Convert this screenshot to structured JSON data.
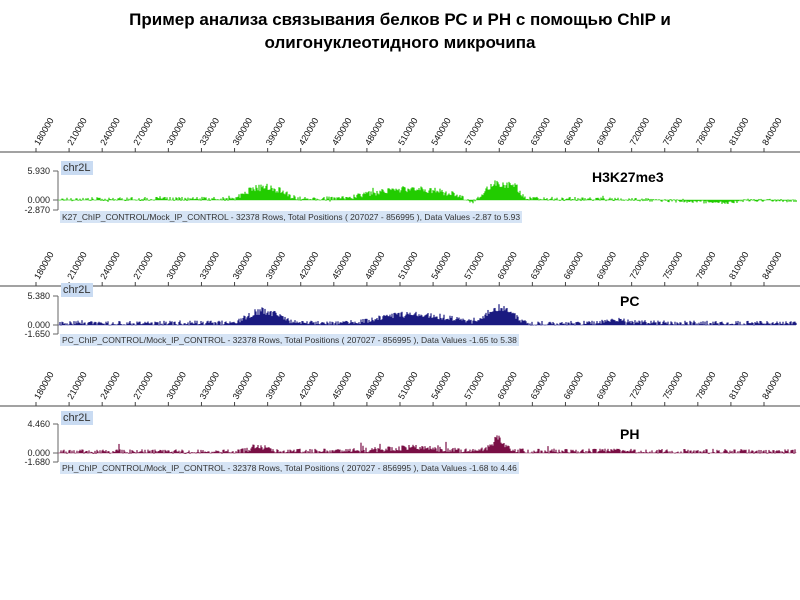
{
  "title": {
    "line1": "Пример анализа связывания белков РС и РН с помощью ChIP и",
    "line2": "олигонуклеотидного микрочипа"
  },
  "chart_data": [
    {
      "type": "area",
      "chromosome": "chr2L",
      "name": "H3K27me3",
      "color": "#22cc00",
      "info": "K27_ChIP_CONTROL/Mock_IP_CONTROL - 32378 Rows, Total Positions ( 207027 - 856995 ), Data Values -2.87 to 5.93",
      "ylim": [
        -2.87,
        5.93
      ],
      "yticks": [
        "5.930",
        "0.000",
        "-2.870"
      ],
      "xlim": [
        180000,
        840000
      ],
      "xticks": [
        "180000",
        "210000",
        "240000",
        "270000",
        "300000",
        "330000",
        "360000",
        "390000",
        "420000",
        "450000",
        "480000",
        "510000",
        "540000",
        "570000",
        "600000",
        "630000",
        "660000",
        "690000",
        "720000",
        "750000",
        "780000",
        "810000",
        "840000"
      ],
      "profile_x": [
        180000,
        340000,
        345000,
        355000,
        365000,
        375000,
        385000,
        392000,
        400000,
        440000,
        450000,
        480000,
        500000,
        520000,
        535000,
        548000,
        556000,
        565000,
        575000,
        585000,
        595000,
        605000,
        700000,
        790000,
        800000,
        830000,
        840000
      ],
      "profile_y": [
        0.1,
        0.2,
        0.8,
        2.2,
        2.6,
        2.3,
        1.8,
        0.6,
        0.2,
        0.3,
        0.8,
        2.0,
        2.3,
        2.0,
        1.4,
        0.3,
        -0.6,
        1.5,
        3.2,
        3.3,
        2.8,
        0.2,
        0.1,
        -0.8,
        -0.2,
        0.0,
        -0.3
      ],
      "noise": 0.45
    },
    {
      "type": "area",
      "chromosome": "chr2L",
      "name": "PC",
      "color": "#1a1a80",
      "info": "PC_ChIP_CONTROL/Mock_IP_CONTROL - 32378 Rows, Total Positions ( 207027 - 856995 ), Data Values -1.65 to 5.38",
      "ylim": [
        -1.65,
        5.38
      ],
      "yticks": [
        "5.380",
        "0.000",
        "-1.650"
      ],
      "xlim": [
        180000,
        840000
      ],
      "xticks": [
        "180000",
        "210000",
        "240000",
        "270000",
        "300000",
        "330000",
        "360000",
        "390000",
        "420000",
        "450000",
        "480000",
        "510000",
        "540000",
        "570000",
        "600000",
        "630000",
        "660000",
        "690000",
        "720000",
        "750000",
        "780000",
        "810000",
        "840000"
      ],
      "profile_x": [
        180000,
        340000,
        348000,
        357000,
        365000,
        375000,
        385000,
        392000,
        400000,
        450000,
        470000,
        490000,
        505000,
        520000,
        540000,
        550000,
        560000,
        572000,
        580000,
        588000,
        598000,
        605000,
        670000,
        680000,
        690000,
        700000,
        720000,
        760000,
        840000
      ],
      "profile_y": [
        0.3,
        0.4,
        1.2,
        2.2,
        2.7,
        2.2,
        1.4,
        0.6,
        0.4,
        0.5,
        1.2,
        1.9,
        2.0,
        1.7,
        1.2,
        0.7,
        1.0,
        2.6,
        3.4,
        2.8,
        1.0,
        0.3,
        0.4,
        0.9,
        1.0,
        0.6,
        0.4,
        0.4,
        0.3
      ],
      "noise": 0.4
    },
    {
      "type": "area",
      "chromosome": "chr2L",
      "name": "PH",
      "color": "#7a0f45",
      "info": "PH_ChIP_CONTROL/Mock_IP_CONTROL - 32378 Rows, Total Positions ( 207027 - 856995 ), Data Values -1.68 to 4.46",
      "ylim": [
        -1.68,
        4.46
      ],
      "yticks": [
        "4.460",
        "0.000",
        "-1.680"
      ],
      "xlim": [
        180000,
        840000
      ],
      "xticks": [
        "180000",
        "210000",
        "240000",
        "270000",
        "300000",
        "330000",
        "360000",
        "390000",
        "420000",
        "450000",
        "480000",
        "510000",
        "540000",
        "570000",
        "600000",
        "630000",
        "660000",
        "690000",
        "720000",
        "750000",
        "780000",
        "810000",
        "840000"
      ],
      "profile_x": [
        180000,
        340000,
        352000,
        360000,
        368000,
        378000,
        392000,
        420000,
        450000,
        480000,
        500000,
        515000,
        530000,
        545000,
        560000,
        572000,
        578000,
        582000,
        590000,
        600000,
        700000,
        840000
      ],
      "profile_y": [
        0.2,
        0.2,
        0.5,
        1.2,
        0.8,
        0.4,
        0.3,
        0.3,
        0.4,
        0.6,
        0.9,
        0.7,
        0.5,
        0.4,
        0.3,
        0.9,
        2.6,
        1.6,
        0.6,
        0.3,
        0.3,
        0.2
      ],
      "noise": 0.35
    }
  ]
}
